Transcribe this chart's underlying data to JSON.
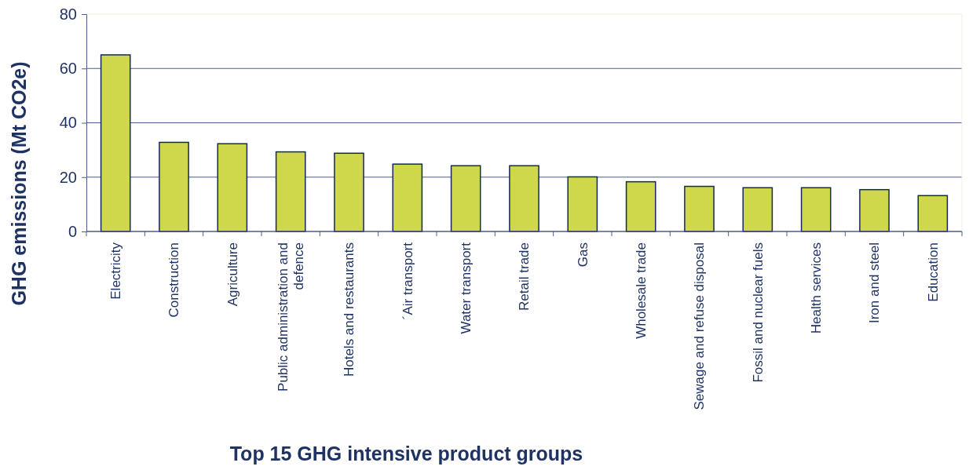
{
  "chart_data": {
    "type": "bar",
    "xlabel": "Top 15 GHG intensive product groups",
    "ylabel": "GHG emissions (Mt CO2e)",
    "categories": [
      "Electricity",
      "Construction",
      "Agriculture",
      "Public administration and defence",
      "Hotels and restaurants",
      "´Air transport",
      "Water transport",
      "Retail trade",
      "Gas",
      "Wholesale trade",
      "Sewage and refuse disposal",
      "Fossil and nuclear fuels",
      "Health services",
      "Iron and steel",
      "Education"
    ],
    "values": [
      65,
      32.8,
      32.3,
      29.3,
      28.8,
      24.8,
      24.2,
      24.2,
      20.1,
      18.3,
      16.6,
      16.1,
      16.1,
      15.4,
      13.2
    ],
    "color": "#cfd84a",
    "ylim": [
      0,
      80
    ],
    "yticks": [
      0,
      20,
      40,
      60,
      80
    ],
    "grid": "y"
  }
}
